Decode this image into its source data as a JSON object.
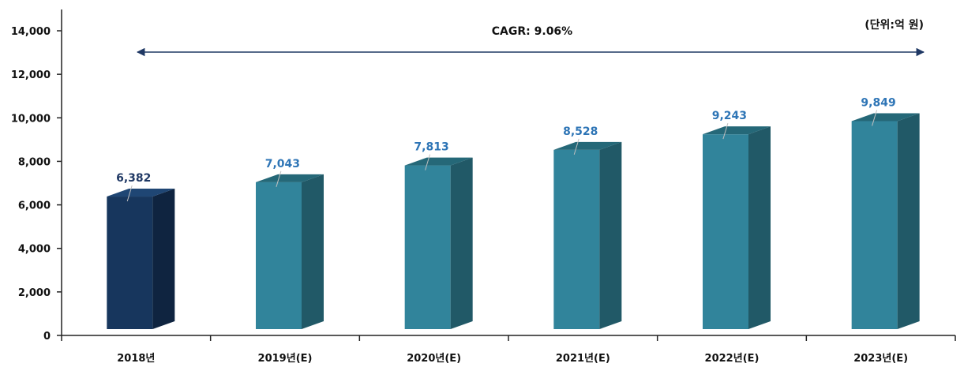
{
  "chart_data": {
    "type": "bar",
    "categories": [
      "2018년",
      "2019년(E)",
      "2020년(E)",
      "2021년(E)",
      "2022년(E)",
      "2023년(E)"
    ],
    "values": [
      6382,
      7043,
      7813,
      8528,
      9243,
      9849
    ],
    "value_labels": [
      "6,382",
      "7,043",
      "7,813",
      "8,528",
      "9,243",
      "9,849"
    ],
    "y_ticks": [
      0,
      2000,
      4000,
      6000,
      8000,
      10000,
      12000,
      14000
    ],
    "y_tick_labels": [
      "0",
      "2,000",
      "4,000",
      "6,000",
      "8,000",
      "10,000",
      "12,000",
      "14,000"
    ],
    "ylim": [
      0,
      14000
    ],
    "title": "",
    "xlabel": "",
    "ylabel": "",
    "unit_note": "(단위:억 원)",
    "annotation": "CAGR: 9.06%",
    "grid": false,
    "legend": "none",
    "style": "3d-column",
    "colors": {
      "actual_front": "#17365d",
      "actual_side": "#0f2440",
      "actual_top": "#1f4674",
      "forecast_front": "#31849b",
      "forecast_side": "#215967",
      "forecast_top": "#256878",
      "actual_label": "#1f3864",
      "forecast_label": "#2e75b6",
      "arrow": "#1f3864"
    }
  }
}
